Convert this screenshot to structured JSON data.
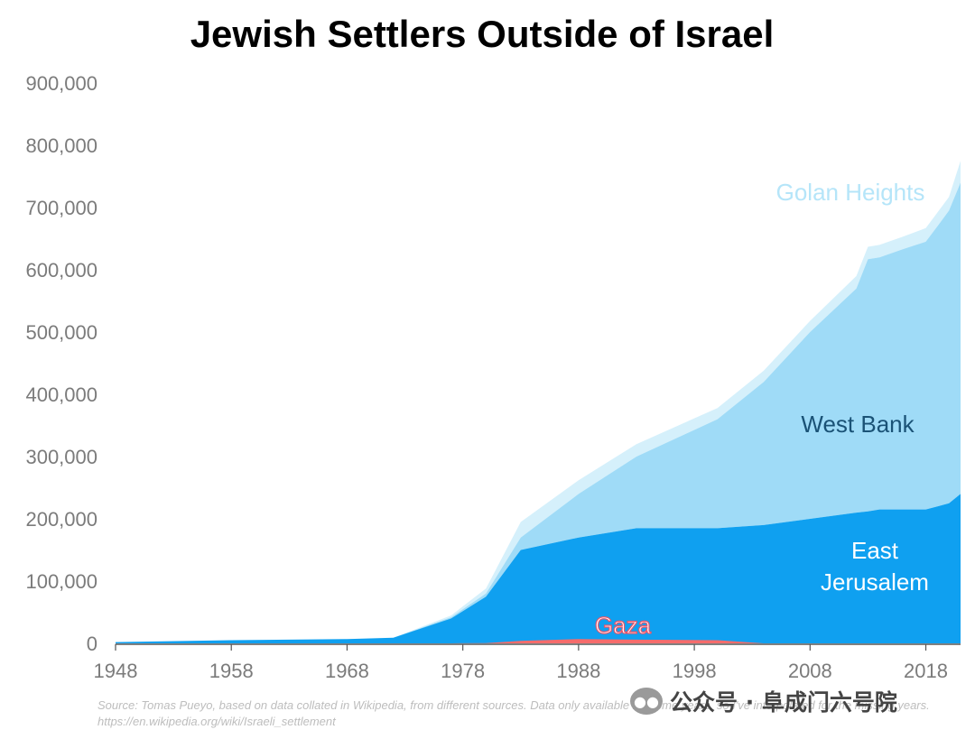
{
  "chart_data": {
    "type": "area",
    "stacked": true,
    "title": "Jewish Settlers Outside of Israel",
    "xlabel": "",
    "ylabel": "",
    "xlim": [
      1948,
      2021
    ],
    "ylim": [
      0,
      900000
    ],
    "x_ticks": [
      "1948",
      "1958",
      "1968",
      "1978",
      "1988",
      "1998",
      "2008",
      "2018"
    ],
    "y_ticks": [
      "900,000",
      "800,000",
      "700,000",
      "600,000",
      "500,000",
      "400,000",
      "300,000",
      "200,000",
      "100,000",
      "0"
    ],
    "x": [
      1948,
      1958,
      1968,
      1972,
      1977,
      1980,
      1983,
      1988,
      1993,
      2000,
      2004,
      2008,
      2012,
      2013,
      2014,
      2016,
      2018,
      2019,
      2020,
      2021
    ],
    "series": [
      {
        "name": "Gaza",
        "color": "#f56c6c",
        "values": [
          0,
          0,
          0,
          0,
          0,
          500,
          4000,
          7000,
          6000,
          5000,
          0,
          0,
          0,
          0,
          0,
          0,
          0,
          0,
          0,
          0
        ]
      },
      {
        "name": "East Jerusalem",
        "color": "#0fa0f0",
        "values": [
          2000,
          5000,
          7000,
          9000,
          40000,
          75000,
          150000,
          170000,
          185000,
          185000,
          190000,
          200000,
          210000,
          212000,
          215000,
          215000,
          215000,
          220000,
          225000,
          240000
        ]
      },
      {
        "name": "West Bank",
        "color": "#9fdbf7",
        "values": [
          0,
          0,
          0,
          0,
          2000,
          5000,
          20000,
          70000,
          115000,
          175000,
          230000,
          300000,
          360000,
          405000,
          405000,
          418000,
          430000,
          450000,
          470000,
          500000
        ]
      },
      {
        "name": "Golan Heights",
        "color": "#d5f0fb",
        "values": [
          0,
          0,
          0,
          0,
          3000,
          8000,
          25000,
          22000,
          20000,
          18000,
          18000,
          18000,
          20000,
          20000,
          20000,
          20000,
          22000,
          22000,
          22000,
          35000
        ]
      }
    ],
    "legend": "inline labels on areas",
    "grid": false
  },
  "series_labels": {
    "golan": "Golan Heights",
    "west_bank": "West Bank",
    "east_jerusalem_line1": "East",
    "east_jerusalem_line2": "Jerusalem",
    "gaza": "Gaza"
  },
  "colors": {
    "golan_label": "#b5e5f9",
    "west_bank_label": "#1a5276",
    "east_jerusalem_label": "#ffffff",
    "gaza_label": "#ffffff",
    "gaza_label_outline": "#e8556a",
    "axis": "#555555"
  },
  "source_text": "Source: Tomas Pueyo, based on data collated in Wikipedia, from different sources. Data only available for some years, so I've interpolated for the missing years. https://en.wikipedia.org/wiki/Israeli_settlement",
  "watermark": {
    "text": "公众号 · 阜成门六号院"
  }
}
